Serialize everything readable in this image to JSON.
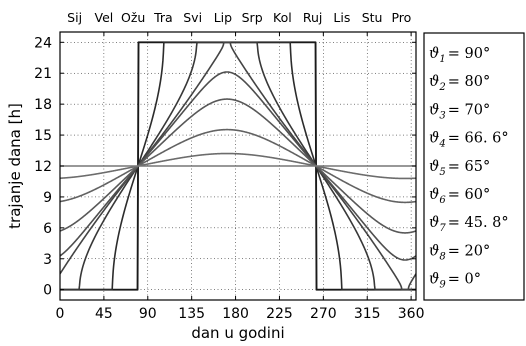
{
  "chart_data": {
    "type": "line",
    "xlabel": "dan u godini",
    "ylabel": "trajanje dana  [h]",
    "xlim": [
      0,
      365
    ],
    "ylim": [
      -1,
      25
    ],
    "x_ticks": [
      0,
      45,
      90,
      135,
      180,
      225,
      270,
      315,
      360
    ],
    "y_ticks": [
      0,
      3,
      6,
      9,
      12,
      15,
      18,
      21,
      24
    ],
    "month_labels": [
      "Sij",
      "Vel",
      "Ožu",
      "Tra",
      "Svi",
      "Lip",
      "Srp",
      "Kol",
      "Ruj",
      "Lis",
      "Stu",
      "Pro"
    ],
    "month_positions": [
      15,
      45,
      75,
      106,
      136,
      167,
      197,
      228,
      259,
      289,
      320,
      350
    ],
    "grid": true,
    "legend_position": "right-outside",
    "series": [
      {
        "name": "ϑ1 = 90°",
        "latitude": 90,
        "color": "#1a1a1a"
      },
      {
        "name": "ϑ2 = 80°",
        "latitude": 80,
        "color": "#2c2c2c"
      },
      {
        "name": "ϑ3 = 70°",
        "latitude": 70,
        "color": "#383838"
      },
      {
        "name": "ϑ4 = 66.6°",
        "latitude": 66.6,
        "color": "#444444"
      },
      {
        "name": "ϑ5 = 65°",
        "latitude": 65,
        "color": "#4e4e4e"
      },
      {
        "name": "ϑ6 = 60°",
        "latitude": 60,
        "color": "#585858"
      },
      {
        "name": "ϑ7 = 45.8°",
        "latitude": 45.8,
        "color": "#626262"
      },
      {
        "name": "ϑ8 = 20°",
        "latitude": 20,
        "color": "#6c6c6c"
      },
      {
        "name": "ϑ9 = 0°",
        "latitude": 0,
        "color": "#767676"
      }
    ]
  },
  "legend": {
    "items": [
      {
        "sym": "ϑ",
        "sub": "1",
        "val": "= 90°"
      },
      {
        "sym": "ϑ",
        "sub": "2",
        "val": "= 80°"
      },
      {
        "sym": "ϑ",
        "sub": "3",
        "val": "= 70°"
      },
      {
        "sym": "ϑ",
        "sub": "4",
        "val": "= 66. 6°"
      },
      {
        "sym": "ϑ",
        "sub": "5",
        "val": "= 65°"
      },
      {
        "sym": "ϑ",
        "sub": "6",
        "val": "= 60°"
      },
      {
        "sym": "ϑ",
        "sub": "7",
        "val": "= 45. 8°"
      },
      {
        "sym": "ϑ",
        "sub": "8",
        "val": "= 20°"
      },
      {
        "sym": "ϑ",
        "sub": "9",
        "val": "= 0°"
      }
    ]
  }
}
